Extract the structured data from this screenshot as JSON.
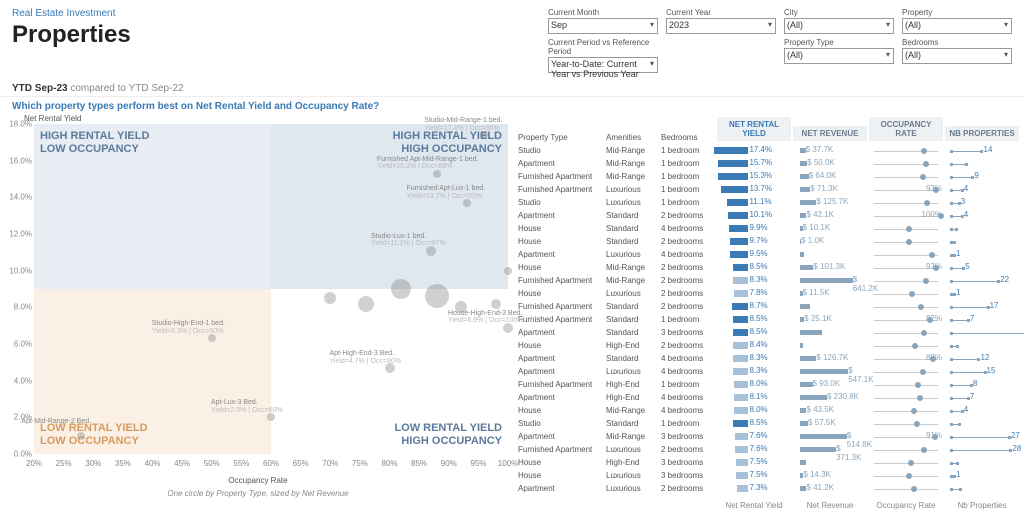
{
  "breadcrumb": "Real Estate Investment",
  "pageTitle": "Properties",
  "filters": [
    {
      "label": "Current Month",
      "value": "Sep"
    },
    {
      "label": "Current Year",
      "value": "2023"
    },
    {
      "label": "City",
      "value": "(All)"
    },
    {
      "label": "Property",
      "value": "(All)"
    },
    {
      "label": "Current Period vs Reference Period",
      "value": "Year-to-Date: Current Year vs Previous Year"
    },
    {
      "label": "",
      "value": ""
    },
    {
      "label": "Property Type",
      "value": "(All)"
    },
    {
      "label": "Bedrooms",
      "value": "(All)"
    }
  ],
  "subheadMain": "YTD Sep-23",
  "subheadRef": "compared to YTD Sep-22",
  "question": "Which property types perform best on Net Rental Yield and Occupancy Rate?",
  "scatter": {
    "yAxisLabel": "Net Rental Yield",
    "xAxisLabel": "Occupancy Rate",
    "caption": "One circle by Property Type, sized by Net Revenue",
    "yTicks": [
      "0.0%",
      "2.0%",
      "4.0%",
      "6.0%",
      "8.0%",
      "10.0%",
      "12.0%",
      "14.0%",
      "16.0%",
      "18.0%"
    ],
    "xTicks": [
      "20%",
      "25%",
      "30%",
      "35%",
      "40%",
      "45%",
      "50%",
      "55%",
      "60%",
      "65%",
      "70%",
      "75%",
      "80%",
      "85%",
      "90%",
      "95%",
      "100%"
    ],
    "quads": {
      "tl": "HIGH RENTAL YIELD\nLOW OCCUPANCY",
      "tr": "HIGH RENTAL YIELD\nHIGH OCCUPANCY",
      "bl": "LOW RENTAL YIELD\nLOW OCCUPANCY",
      "br": "LOW RENTAL YIELD\nHIGH OCCUPANCY"
    },
    "bubbles": [
      {
        "x": 96,
        "y": 17.4,
        "r": 4,
        "label": "Studio-Mid-Range-1 bed.",
        "sub": "Yield=17.4% | Occ=96%"
      },
      {
        "x": 88,
        "y": 15.3,
        "r": 4,
        "label": "Furnished Apt-Mid-Range-1 bed.",
        "sub": "Yield=15.3% | Occ=88%"
      },
      {
        "x": 93,
        "y": 13.7,
        "r": 4,
        "label": "Furnished Apt-Lux-1 bed.",
        "sub": "Yield=13.7% | Occ=93%"
      },
      {
        "x": 87,
        "y": 11.1,
        "r": 5,
        "label": "Studio-Lux-1 bed.",
        "sub": "Yield=11.1% | Occ=87%"
      },
      {
        "x": 82,
        "y": 9.0,
        "r": 10
      },
      {
        "x": 88,
        "y": 8.6,
        "r": 12
      },
      {
        "x": 76,
        "y": 8.2,
        "r": 8
      },
      {
        "x": 70,
        "y": 8.5,
        "r": 6
      },
      {
        "x": 92,
        "y": 8.0,
        "r": 6
      },
      {
        "x": 98,
        "y": 8.2,
        "r": 5
      },
      {
        "x": 100,
        "y": 10.0,
        "r": 4
      },
      {
        "x": 50,
        "y": 6.3,
        "r": 4,
        "label": "Studio-High-End-1 bed.",
        "sub": "Yield=6.3% | Occ=50%"
      },
      {
        "x": 100,
        "y": 6.9,
        "r": 5,
        "label": "House-High-End-3 Bed.",
        "sub": "Yield=6.9% | Occ=100%"
      },
      {
        "x": 80,
        "y": 4.7,
        "r": 5,
        "label": "Apt-High-End-3 Bed.",
        "sub": "Yield=4.7% | Occ=80%"
      },
      {
        "x": 60,
        "y": 2.0,
        "r": 4,
        "label": "Apt-Lux-3 Bed.",
        "sub": "Yield=2.0% | Occ=60%"
      },
      {
        "x": 28,
        "y": 1.0,
        "r": 4,
        "label": "Apt-Mid-Range-2 Bed."
      }
    ]
  },
  "tableHeaders": {
    "prop": "Property Type",
    "amen": "Amenities",
    "bed": "Bedrooms"
  },
  "metricHeaders": [
    "NET RENTAL YIELD",
    "NET REVENUE",
    "OCCUPANCY RATE",
    "NB PROPERTIES"
  ],
  "metricFooters": [
    "Net Rental Yield",
    "Net Revenue",
    "Occupancy Rate",
    "Nb Properties"
  ],
  "rows": [
    {
      "prop": "Studio",
      "amen": "Mid-Range",
      "bed": "1 bedroom",
      "yield": "17.4%",
      "yw": 45,
      "rev": "$ 37.7K",
      "rw": 8,
      "occ": "",
      "op": 70,
      "nb": "14",
      "np": 40
    },
    {
      "prop": "Apartment",
      "amen": "Mid-Range",
      "bed": "1 bedroom",
      "yield": "15.7%",
      "yw": 40,
      "rev": "$ 50.0K",
      "rw": 10,
      "occ": "",
      "op": 72,
      "nb": "",
      "np": 20
    },
    {
      "prop": "Furnished Apartment",
      "amen": "Mid-Range",
      "bed": "1 bedroom",
      "yield": "15.3%",
      "yw": 39,
      "rev": "$ 64.0K",
      "rw": 12,
      "occ": "",
      "op": 68,
      "nb": "9",
      "np": 28
    },
    {
      "prop": "Furnished Apartment",
      "amen": "Luxurious",
      "bed": "1 bedroom",
      "yield": "13.7%",
      "yw": 35,
      "rev": "$ 71.3K",
      "rw": 14,
      "occ": "93%",
      "op": 86,
      "nb": "4",
      "np": 14
    },
    {
      "prop": "Studio",
      "amen": "Luxurious",
      "bed": "1 bedroom",
      "yield": "11.1%",
      "yw": 28,
      "rev": "$ 125.7K",
      "rw": 22,
      "occ": "",
      "op": 74,
      "nb": "3",
      "np": 10
    },
    {
      "prop": "Apartment",
      "amen": "Standard",
      "bed": "2 bedrooms",
      "yield": "10.1%",
      "yw": 26,
      "rev": "$ 42.1K",
      "rw": 9,
      "occ": "100%",
      "op": 92,
      "nb": "4",
      "np": 14
    },
    {
      "prop": "House",
      "amen": "Standard",
      "bed": "4 bedrooms",
      "yield": "9.9%",
      "yw": 25,
      "rev": "$ 10.1K",
      "rw": 4,
      "occ": "",
      "op": 50,
      "nb": "",
      "np": 6
    },
    {
      "prop": "House",
      "amen": "Standard",
      "bed": "2 bedrooms",
      "yield": "9.7%",
      "yw": 24,
      "rev": "$ 1.0K",
      "rw": 2,
      "occ": "",
      "op": 50,
      "nb": "",
      "np": 4
    },
    {
      "prop": "Apartment",
      "amen": "Luxurious",
      "bed": "4 bedrooms",
      "yield": "9.5%",
      "yw": 24,
      "rev": "",
      "rw": 6,
      "occ": "",
      "op": 80,
      "nb": "1",
      "np": 4
    },
    {
      "prop": "House",
      "amen": "Mid-Range",
      "bed": "2 bedrooms",
      "yield": "8.5%",
      "yw": 20,
      "rev": "$ 101.3K",
      "rw": 18,
      "occ": "93%",
      "op": 86,
      "nb": "5",
      "np": 16
    },
    {
      "prop": "Furnished Apartment",
      "amen": "Mid-Range",
      "bed": "2 bedrooms",
      "yield": "8.3%",
      "yw": 19,
      "rev": "$ 641.2K",
      "rw": 70,
      "occ": "",
      "op": 72,
      "nb": "22",
      "np": 62
    },
    {
      "prop": "House",
      "amen": "Luxurious",
      "bed": "2 bedrooms",
      "yield": "7.8%",
      "yw": 18,
      "rev": "$ 11.5K",
      "rw": 4,
      "occ": "",
      "op": 54,
      "nb": "1",
      "np": 4
    },
    {
      "prop": "Furnished Apartment",
      "amen": "Standard",
      "bed": "2 bedrooms",
      "yield": "8.7%",
      "yw": 21,
      "rev": "",
      "rw": 14,
      "occ": "",
      "op": 66,
      "nb": "17",
      "np": 48
    },
    {
      "prop": "Furnished Apartment",
      "amen": "Standard",
      "bed": "1 bedroom",
      "yield": "8.5%",
      "yw": 20,
      "rev": "$ 25.1K",
      "rw": 6,
      "occ": "82%",
      "op": 78,
      "nb": "7",
      "np": 22
    },
    {
      "prop": "Apartment",
      "amen": "Standard",
      "bed": "3 bedrooms",
      "yield": "8.5%",
      "yw": 20,
      "rev": "",
      "rw": 30,
      "occ": "",
      "op": 70,
      "nb": "35",
      "np": 98
    },
    {
      "prop": "House",
      "amen": "High-End",
      "bed": "2 bedrooms",
      "yield": "8.4%",
      "yw": 19,
      "rev": "",
      "rw": 4,
      "occ": "",
      "op": 58,
      "nb": "",
      "np": 8
    },
    {
      "prop": "Apartment",
      "amen": "Standard",
      "bed": "4 bedrooms",
      "yield": "8.3%",
      "yw": 19,
      "rev": "$ 126.7K",
      "rw": 22,
      "occ": "88%",
      "op": 82,
      "nb": "12",
      "np": 36
    },
    {
      "prop": "Apartment",
      "amen": "Luxurious",
      "bed": "4 bedrooms",
      "yield": "8.3%",
      "yw": 19,
      "rev": "$ 547.1K",
      "rw": 64,
      "occ": "",
      "op": 68,
      "nb": "15",
      "np": 44
    },
    {
      "prop": "Furnished Apartment",
      "amen": "High-End",
      "bed": "1 bedroom",
      "yield": "8.0%",
      "yw": 18,
      "rev": "$ 93.0K",
      "rw": 17,
      "occ": "",
      "op": 62,
      "nb": "8",
      "np": 26
    },
    {
      "prop": "Apartment",
      "amen": "High-End",
      "bed": "4 bedrooms",
      "yield": "8.1%",
      "yw": 18,
      "rev": "$ 230.8K",
      "rw": 36,
      "occ": "",
      "op": 64,
      "nb": "7",
      "np": 22
    },
    {
      "prop": "House",
      "amen": "Mid-Range",
      "bed": "4 bedrooms",
      "yield": "8.0%",
      "yw": 18,
      "rev": "$ 43.5K",
      "rw": 9,
      "occ": "",
      "op": 56,
      "nb": "4",
      "np": 14
    },
    {
      "prop": "Studio",
      "amen": "Standard",
      "bed": "1 bedroom",
      "yield": "8.5%",
      "yw": 20,
      "rev": "$ 57.5K",
      "rw": 11,
      "occ": "",
      "op": 60,
      "nb": "",
      "np": 10
    },
    {
      "prop": "Apartment",
      "amen": "Mid-Range",
      "bed": "3 bedrooms",
      "yield": "7.6%",
      "yw": 17,
      "rev": "$ 514.8K",
      "rw": 62,
      "occ": "91%",
      "op": 84,
      "nb": "27",
      "np": 76
    },
    {
      "prop": "Furnished Apartment",
      "amen": "Luxurious",
      "bed": "2 bedrooms",
      "yield": "7.6%",
      "yw": 17,
      "rev": "$ 371.3K",
      "rw": 48,
      "occ": "",
      "op": 70,
      "nb": "28",
      "np": 78
    },
    {
      "prop": "House",
      "amen": "High-End",
      "bed": "3 bedrooms",
      "yield": "7.5%",
      "yw": 16,
      "rev": "",
      "rw": 8,
      "occ": "",
      "op": 52,
      "nb": "",
      "np": 8
    },
    {
      "prop": "House",
      "amen": "Luxurious",
      "bed": "3 bedrooms",
      "yield": "7.5%",
      "yw": 16,
      "rev": "$ 14.3K",
      "rw": 5,
      "occ": "",
      "op": 50,
      "nb": "1",
      "np": 4
    },
    {
      "prop": "Apartment",
      "amen": "Luxurious",
      "bed": "2 bedrooms",
      "yield": "7.3%",
      "yw": 15,
      "rev": "$ 41.2K",
      "rw": 9,
      "occ": "",
      "op": 56,
      "nb": "",
      "np": 12
    }
  ]
}
